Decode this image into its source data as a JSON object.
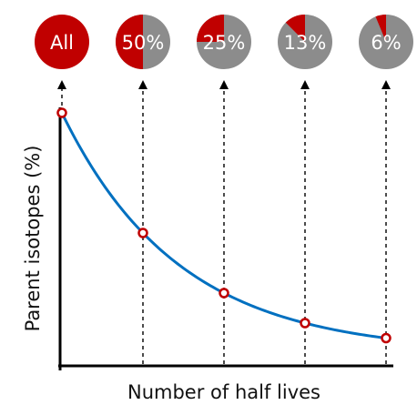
{
  "chart_data": {
    "type": "line",
    "xlabel": "Number of half lives",
    "ylabel": "Parent isotopes (%)",
    "x": [
      0,
      1,
      2,
      3,
      4
    ],
    "y": [
      100,
      50,
      25,
      12.5,
      6.25
    ],
    "xlim": [
      0,
      4
    ],
    "ylim": [
      0,
      100
    ],
    "grid": false,
    "pies": [
      {
        "label": "All",
        "fraction": 1.0
      },
      {
        "label": "50%",
        "fraction": 0.5
      },
      {
        "label": "25%",
        "fraction": 0.25
      },
      {
        "label": "13%",
        "fraction": 0.125
      },
      {
        "label": "6%",
        "fraction": 0.0625
      }
    ],
    "colors": {
      "parent": "#c00000",
      "daughter": "#8c8c8c",
      "curve": "#0070c0",
      "marker": "#c00000",
      "axis": "#000000"
    }
  }
}
